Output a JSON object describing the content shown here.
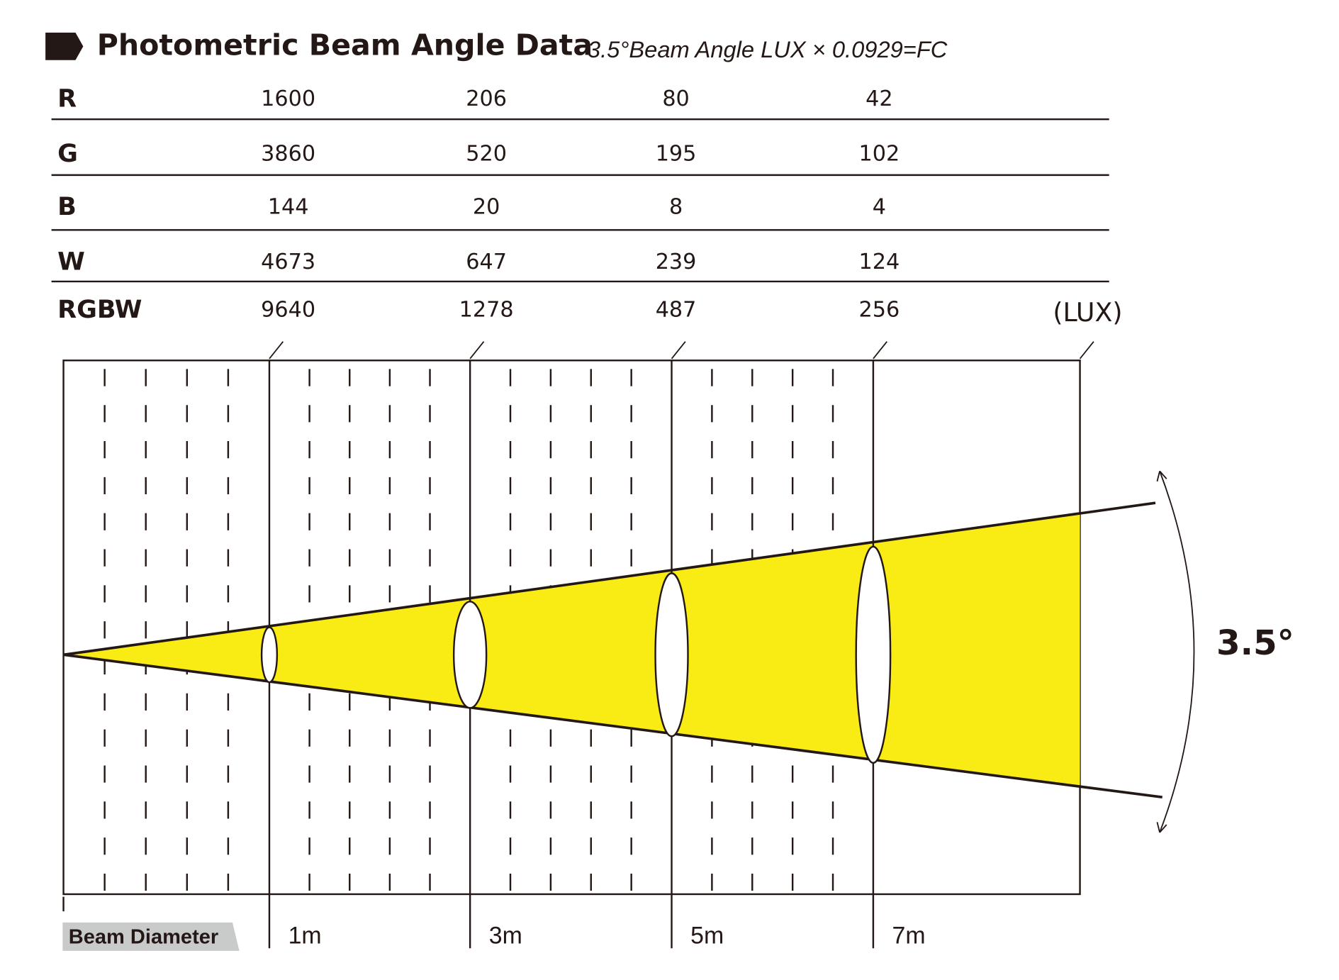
{
  "header": {
    "title": "Photometric Beam Angle Data",
    "subtitle": "3.5°Beam Angle  LUX × 0.0929=FC"
  },
  "table": {
    "rows": [
      [
        "R",
        "1600",
        "206",
        "80",
        "42"
      ],
      [
        "G",
        "3860",
        "520",
        "195",
        "102"
      ],
      [
        "B",
        "144",
        "20",
        "8",
        "4"
      ],
      [
        "W",
        "4673",
        "647",
        "239",
        "124"
      ],
      [
        "RGBW",
        "9640",
        "1278",
        "487",
        "256"
      ]
    ],
    "unit": "(LUX)"
  },
  "diagram": {
    "angle": "3.5°",
    "axis_label": "Beam Diameter",
    "distances": [
      "1m",
      "3m",
      "5m",
      "7m"
    ]
  }
}
